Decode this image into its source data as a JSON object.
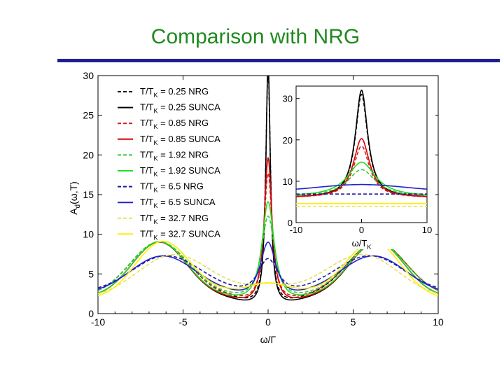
{
  "slide": {
    "title": "Comparison with NRG"
  },
  "colors": {
    "title": "#1f8a1f",
    "rule": "#1f1f8f"
  },
  "chart_data": [
    {
      "type": "line",
      "role": "main",
      "xlabel": "ω/Γ",
      "ylabel": "A_d(ω,T)",
      "ylabel_main": "A",
      "ylabel_sub": "d",
      "ylabel_tail": "(ω,T)",
      "xlim": [
        -10,
        10
      ],
      "ylim": [
        0,
        30
      ],
      "xticks": [
        -10,
        -5,
        0,
        5,
        10
      ],
      "yticks": [
        0,
        5,
        10,
        15,
        20,
        25,
        30
      ],
      "legend_position": "top-left",
      "series": [
        {
          "name": "T/T_K = 0.25 NRG",
          "prefix": "T/T",
          "sub": "K",
          "suffix": " = 0.25 NRG",
          "color": "#000000",
          "dash": "dash",
          "peak": 31,
          "width": 0.17,
          "side": [
            [
              -6.4,
              6.8,
              1.7
            ],
            [
              6.4,
              6.8,
              1.7
            ]
          ],
          "base": 2.2
        },
        {
          "name": "T/T_K = 0.25 SUNCA",
          "prefix": "T/T",
          "sub": "K",
          "suffix": " = 0.25 SUNCA",
          "color": "#000000",
          "dash": "solid",
          "peak": 32,
          "width": 0.16,
          "side": [
            [
              -6.4,
              7.0,
              1.6
            ],
            [
              6.4,
              7.0,
              1.6
            ]
          ],
          "base": 2.0
        },
        {
          "name": "T/T_K = 0.85 NRG",
          "prefix": "T/T",
          "sub": "K",
          "suffix": " = 0.85 NRG",
          "color": "#cc2222",
          "dash": "dash",
          "peak": 18,
          "width": 0.3,
          "side": [
            [
              -6.4,
              6.8,
              1.7
            ],
            [
              6.4,
              6.8,
              1.7
            ]
          ],
          "base": 2.2
        },
        {
          "name": "T/T_K = 0.85 SUNCA",
          "prefix": "T/T",
          "sub": "K",
          "suffix": " = 0.85 SUNCA",
          "color": "#dd0000",
          "dash": "solid",
          "peak": 20,
          "width": 0.28,
          "side": [
            [
              -6.4,
              7.0,
              1.6
            ],
            [
              6.4,
              7.0,
              1.6
            ]
          ],
          "base": 2.0
        },
        {
          "name": "T/T_K = 1.92 NRG",
          "prefix": "T/T",
          "sub": "K",
          "suffix": " = 1.92 NRG",
          "color": "#33cc33",
          "dash": "dash",
          "peak": 12.6,
          "width": 0.5,
          "side": [
            [
              -6.4,
              6.8,
              1.7
            ],
            [
              6.4,
              6.8,
              1.7
            ]
          ],
          "base": 2.2
        },
        {
          "name": "T/T_K = 1.92 SUNCA",
          "prefix": "T/T",
          "sub": "K",
          "suffix": " = 1.92 SUNCA",
          "color": "#22dd22",
          "dash": "solid",
          "peak": 14.5,
          "width": 0.45,
          "side": [
            [
              -6.4,
              7.0,
              1.6
            ],
            [
              6.4,
              7.0,
              1.6
            ]
          ],
          "base": 2.0
        },
        {
          "name": "T/T_K = 6.5 NRG",
          "prefix": "T/T",
          "sub": "K",
          "suffix": " = 6.5  NRG",
          "color": "#1a1a9c",
          "dash": "dash",
          "peak": 7.0,
          "width": 0.8,
          "side": [
            [
              -6.0,
              4.6,
              2.0
            ],
            [
              6.0,
              4.6,
              2.0
            ]
          ],
          "base": 2.6
        },
        {
          "name": "T/T_K = 6.5 SUNCA",
          "prefix": "T/T",
          "sub": "K",
          "suffix": " = 6.5  SUNCA",
          "color": "#2222cc",
          "dash": "solid",
          "peak": 9.2,
          "width": 0.6,
          "side": [
            [
              -6.2,
              4.8,
              1.9
            ],
            [
              6.2,
              4.8,
              1.9
            ]
          ],
          "base": 2.4
        },
        {
          "name": "T/T_K = 32.7 NRG",
          "prefix": "T/T",
          "sub": "K",
          "suffix": " = 32.7 NRG",
          "color": "#e8e055",
          "dash": "dash",
          "peak": 4.0,
          "width": 2.0,
          "side": [
            [
              -5.6,
              5.3,
              2.1
            ],
            [
              5.6,
              5.3,
              2.1
            ]
          ],
          "base": 1.8
        },
        {
          "name": "T/T_K = 32.7 SUNCA",
          "prefix": "T/T",
          "sub": "K",
          "suffix": " = 32.7 SUNCA",
          "color": "#ffee00",
          "dash": "solid",
          "peak": 4.4,
          "width": 2.0,
          "side": [
            [
              -6.2,
              7.1,
              1.6
            ],
            [
              6.2,
              7.1,
              1.6
            ]
          ],
          "base": 1.7
        }
      ]
    },
    {
      "type": "line",
      "role": "inset",
      "xlabel": "ω/T_K",
      "xlabel_main": "ω/T",
      "xlabel_sub": "K",
      "xlim": [
        -10,
        10
      ],
      "ylim": [
        0,
        33
      ],
      "xticks": [
        -10,
        0,
        10
      ],
      "yticks": [
        0,
        10,
        20,
        30
      ],
      "series": [
        {
          "name": "T/T_K = 0.25 NRG",
          "color": "#000000",
          "dash": "dash",
          "peak": 31,
          "hw": 1.15,
          "base": 6.0
        },
        {
          "name": "T/T_K = 0.25 SUNCA",
          "color": "#000000",
          "dash": "solid",
          "peak": 32,
          "hw": 1.15,
          "base": 6.0
        },
        {
          "name": "T/T_K = 0.85 NRG",
          "color": "#cc2222",
          "dash": "dash",
          "peak": 18.5,
          "hw": 1.5,
          "base": 6.0
        },
        {
          "name": "T/T_K = 0.85 SUNCA",
          "color": "#dd0000",
          "dash": "solid",
          "peak": 20.3,
          "hw": 1.5,
          "base": 6.0
        },
        {
          "name": "T/T_K = 1.92 NRG",
          "color": "#33cc33",
          "dash": "dash",
          "peak": 12.8,
          "hw": 2.6,
          "base": 6.2
        },
        {
          "name": "T/T_K = 1.92 SUNCA",
          "color": "#22dd22",
          "dash": "solid",
          "peak": 14.6,
          "hw": 2.6,
          "base": 6.2
        },
        {
          "name": "T/T_K = 6.5 NRG",
          "color": "#1a1a9c",
          "dash": "dash",
          "peak": 6.9,
          "flat": true,
          "edge": 6.9
        },
        {
          "name": "T/T_K = 6.5 SUNCA",
          "color": "#2222cc",
          "dash": "solid",
          "peak": 9.2,
          "flat": true,
          "edge": 7.6
        },
        {
          "name": "T/T_K = 32.7 NRG",
          "color": "#e8e055",
          "dash": "dash",
          "peak": 3.9,
          "flat": true,
          "edge": 3.9
        },
        {
          "name": "T/T_K = 32.7 SUNCA",
          "color": "#ffee00",
          "dash": "solid",
          "peak": 4.6,
          "flat": true,
          "edge": 4.6
        }
      ]
    }
  ]
}
